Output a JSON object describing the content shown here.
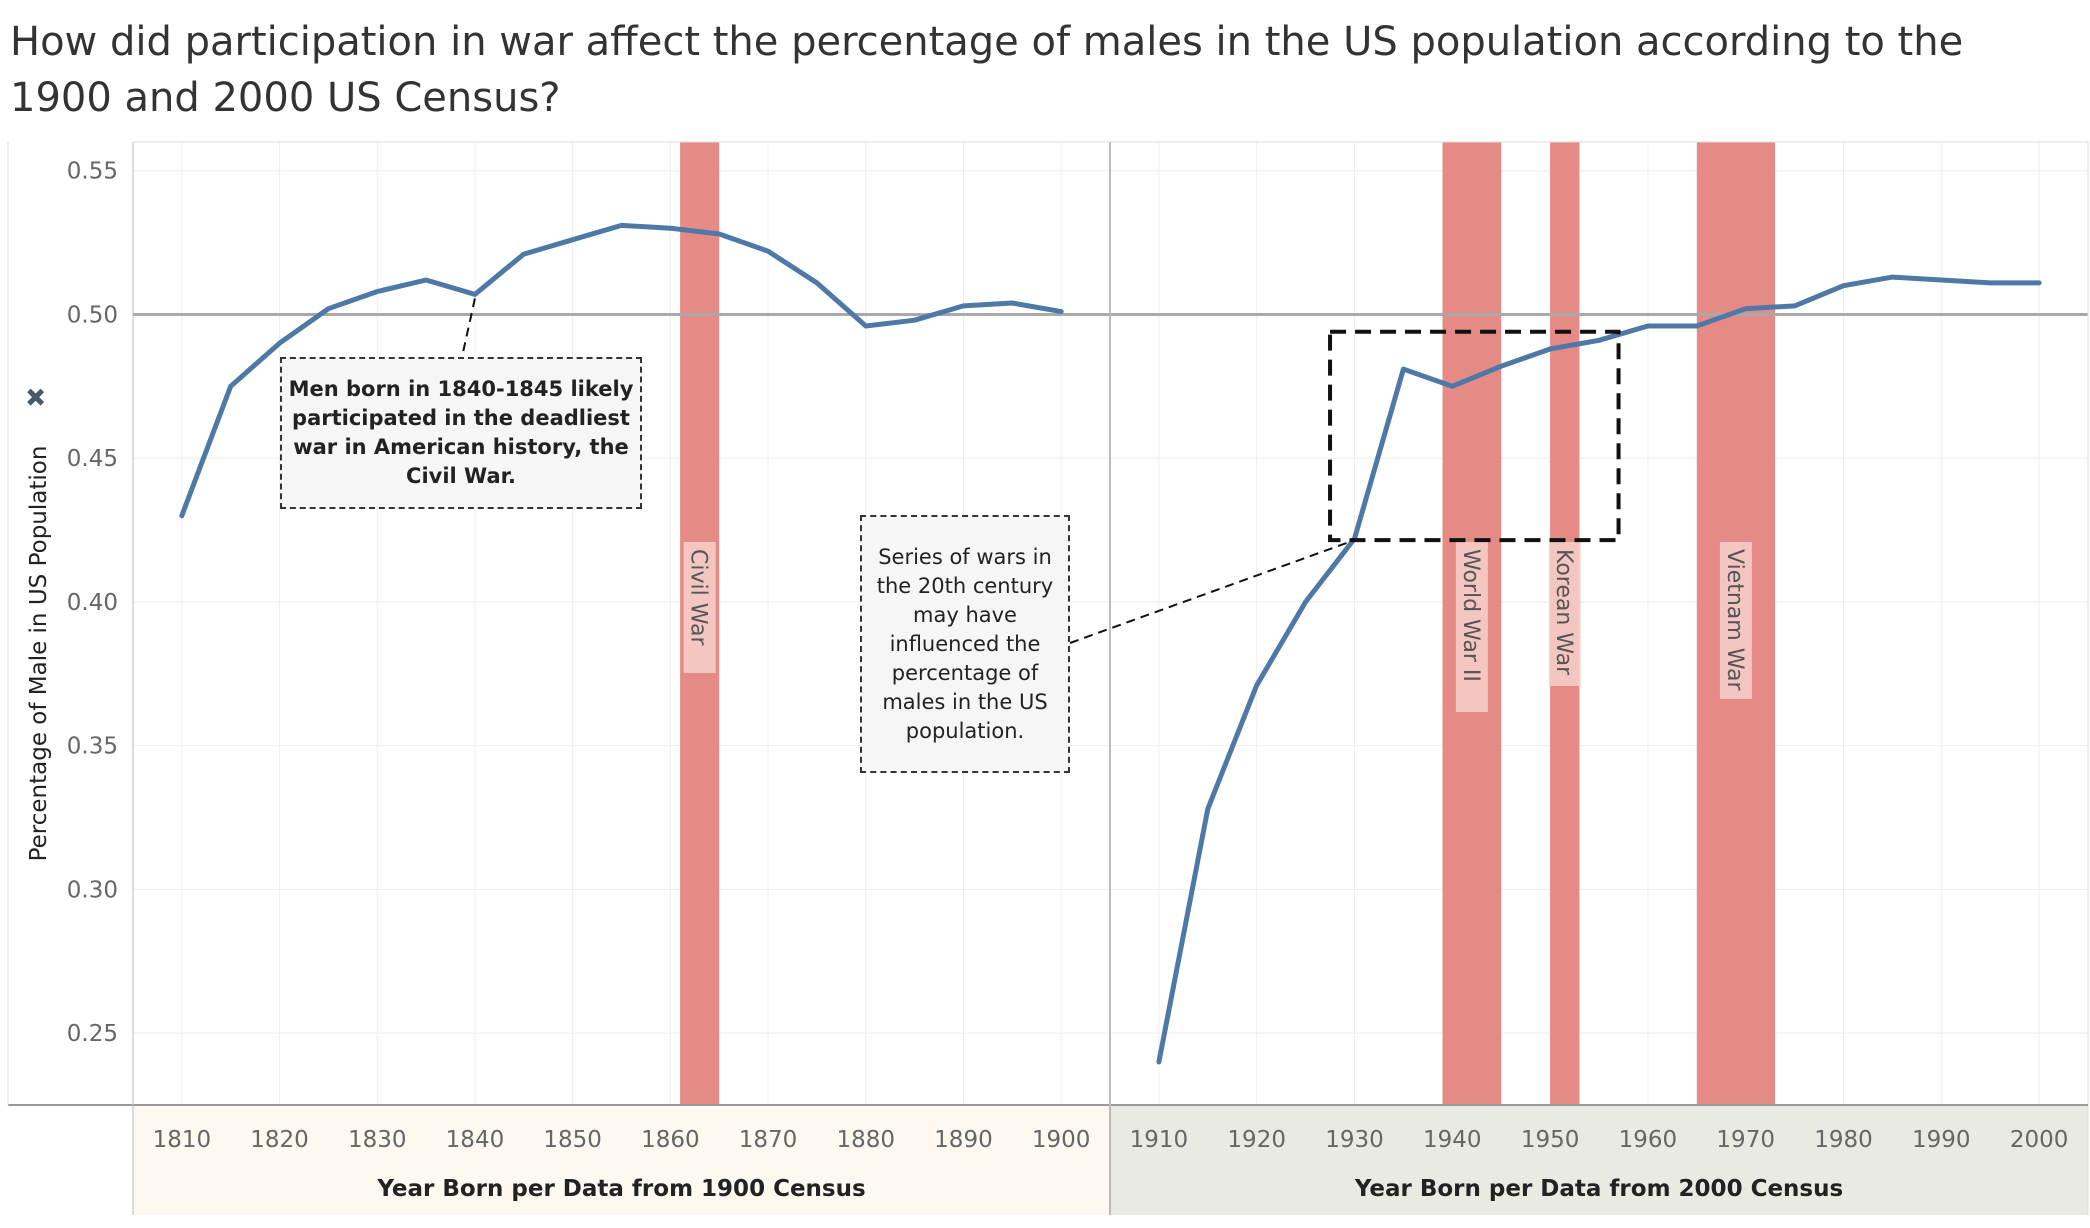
{
  "title": "How did participation in war affect the percentage of males in the US population according to the 1900 and 2000 US Census?",
  "colors": {
    "line": "#4e79a7",
    "war_band": "#e58a85",
    "left_axis_bg": "#fdf9f1",
    "right_axis_bg": "#e9ebe2",
    "reference_line": "#a9a9a9"
  },
  "annotations": {
    "civil": "Men born in 1840-1845 likely participated in the deadliest war in American history, the Civil War.",
    "twentieth": "Series of wars in the 20th century may have influenced the percentage of males in the US population."
  },
  "chart_data": {
    "type": "line",
    "ylabel": "Percentage of Male in US Population",
    "ylim": [
      0.225,
      0.56
    ],
    "yticks": [
      0.25,
      0.3,
      0.35,
      0.4,
      0.45,
      0.5,
      0.55
    ],
    "reference_line": 0.5,
    "grid": true,
    "panels": [
      {
        "xlabel": "Year Born per Data from 1900 Census",
        "xlim": [
          1805,
          1905
        ],
        "xticks": [
          1810,
          1820,
          1830,
          1840,
          1850,
          1860,
          1870,
          1880,
          1890,
          1900
        ],
        "series": [
          {
            "x": [
              1810,
              1815,
              1820,
              1825,
              1830,
              1835,
              1840,
              1845,
              1850,
              1855,
              1860,
              1865,
              1870,
              1875,
              1880,
              1885,
              1890,
              1895,
              1900
            ],
            "y": [
              0.43,
              0.475,
              0.49,
              0.502,
              0.508,
              0.512,
              0.507,
              0.521,
              0.526,
              0.531,
              0.53,
              0.528,
              0.522,
              0.511,
              0.496,
              0.498,
              0.503,
              0.504,
              0.501
            ]
          }
        ],
        "wars": [
          {
            "label": "Civil War",
            "start": 1861,
            "end": 1865
          }
        ]
      },
      {
        "xlabel": "Year Born per Data from 2000 Census",
        "xlim": [
          1905,
          2005
        ],
        "xticks": [
          1910,
          1920,
          1930,
          1940,
          1950,
          1960,
          1970,
          1980,
          1990,
          2000
        ],
        "series": [
          {
            "x": [
              1910,
              1915,
              1920,
              1925,
              1930,
              1935,
              1940,
              1945,
              1950,
              1955,
              1960,
              1965,
              1970,
              1975,
              1980,
              1985,
              1990,
              1995,
              2000
            ],
            "y": [
              0.24,
              0.328,
              0.371,
              0.4,
              0.422,
              0.481,
              0.475,
              0.482,
              0.488,
              0.491,
              0.496,
              0.496,
              0.502,
              0.503,
              0.51,
              0.513,
              0.512,
              0.511,
              0.511
            ]
          }
        ],
        "wars": [
          {
            "label": "World War II",
            "start": 1939,
            "end": 1945
          },
          {
            "label": "Korean War",
            "start": 1950,
            "end": 1953
          },
          {
            "label": "Vietnam War",
            "start": 1965,
            "end": 1973
          }
        ]
      }
    ]
  }
}
